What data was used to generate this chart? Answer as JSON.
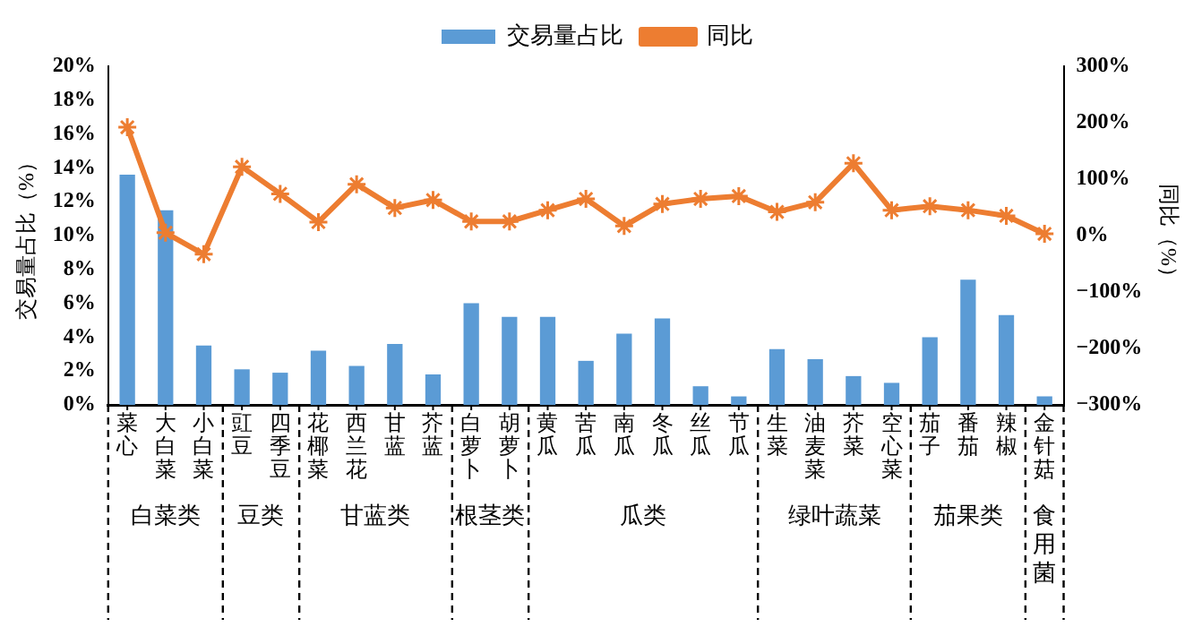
{
  "chart_data": {
    "type": "bar",
    "categories": [
      "菜心",
      "大白菜",
      "小白菜",
      "豇豆",
      "四季豆",
      "花椰菜",
      "西兰花",
      "甘蓝",
      "芥蓝",
      "白萝卜",
      "胡萝卜",
      "黄瓜",
      "苦瓜",
      "南瓜",
      "冬瓜",
      "丝瓜",
      "节瓜",
      "生菜",
      "油麦菜",
      "芥菜",
      "空心菜",
      "茄子",
      "番茄",
      "辣椒",
      "金针菇"
    ],
    "series": [
      {
        "name": "交易量占比",
        "color": "#5b9bd5",
        "values": [
          13.6,
          11.5,
          3.5,
          2.1,
          1.9,
          3.2,
          2.3,
          3.6,
          1.8,
          6.0,
          5.2,
          5.2,
          2.6,
          4.2,
          5.1,
          1.1,
          0.5,
          3.3,
          2.7,
          1.7,
          1.3,
          4.0,
          7.4,
          5.3,
          0.5
        ]
      },
      {
        "name": "同比",
        "type": "line",
        "axis": "y2",
        "color": "#ed7d31",
        "marker": "cross",
        "values": [
          192,
          5,
          -33,
          122,
          74,
          24,
          91,
          49,
          63,
          25,
          25,
          45,
          65,
          17,
          56,
          65,
          70,
          42,
          59,
          128,
          45,
          52,
          45,
          35,
          3
        ]
      }
    ],
    "ylabel": "交易量占比（%）",
    "y2label": "同比（%）",
    "ylim": [
      0,
      20
    ],
    "yticks": [
      {
        "value": 0,
        "label": "0%"
      },
      {
        "value": 2,
        "label": "2%"
      },
      {
        "value": 4,
        "label": "4%"
      },
      {
        "value": 6,
        "label": "6%"
      },
      {
        "value": 8,
        "label": "8%"
      },
      {
        "value": 10,
        "label": "10%"
      },
      {
        "value": 12,
        "label": "12%"
      },
      {
        "value": 14,
        "label": "14%"
      },
      {
        "value": 16,
        "label": "16%"
      },
      {
        "value": 18,
        "label": "18%"
      },
      {
        "value": 20,
        "label": "20%"
      }
    ],
    "y2lim": [
      -300,
      300
    ],
    "y2ticks": [
      {
        "value": -300,
        "label": "−300%"
      },
      {
        "value": -200,
        "label": "−200%"
      },
      {
        "value": -100,
        "label": "−100%"
      },
      {
        "value": 0,
        "label": "0%"
      },
      {
        "value": 100,
        "label": "100%"
      },
      {
        "value": 200,
        "label": "200%"
      },
      {
        "value": 300,
        "label": "300%"
      }
    ],
    "annotations": [
      "白菜类",
      "豆类",
      "甘蓝类",
      "根茎类",
      "瓜类",
      "绿叶蔬菜",
      "茄果类",
      "食用菌"
    ],
    "legend": "top",
    "grid": false
  }
}
